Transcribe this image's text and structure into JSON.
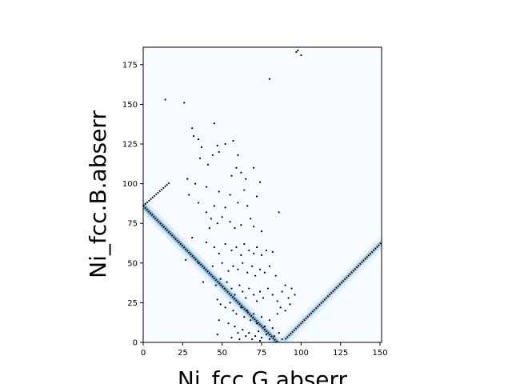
{
  "chart_data": {
    "type": "scatter",
    "title": "",
    "xlabel": "Ni_fcc.G.abserr",
    "ylabel": "Ni_fcc.B.abserr",
    "xlim": [
      0,
      151
    ],
    "ylim": [
      0,
      186
    ],
    "x_ticks": [
      0,
      25,
      50,
      75,
      100,
      125,
      150
    ],
    "y_ticks": [
      0,
      25,
      50,
      75,
      100,
      125,
      150,
      175
    ],
    "x_tick_labels": [
      "0",
      "25",
      "50",
      "75",
      "100",
      "125",
      "150"
    ],
    "y_tick_labels": [
      "0",
      "25",
      "50",
      "75",
      "100",
      "125",
      "150",
      "175"
    ],
    "grid": false,
    "legend": "none",
    "colors": {
      "points": "#000000",
      "density_low": "#f7fbff",
      "density_mid": "#c6dbef",
      "density_high": "#4292c6"
    },
    "trends": [
      {
        "name": "",
        "from": [
          0,
          86
        ],
        "to": [
          85,
          0
        ]
      },
      {
        "name": "",
        "from": [
          0,
          86
        ],
        "to": [
          17,
          101
        ]
      },
      {
        "name": "",
        "from": [
          90,
          2
        ],
        "to": [
          151,
          63
        ]
      }
    ],
    "density_bands": [
      {
        "from": [
          0,
          86
        ],
        "to": [
          85,
          0
        ],
        "intensity": 0.9
      },
      {
        "from": [
          90,
          2
        ],
        "to": [
          151,
          63
        ],
        "intensity": 0.5
      }
    ],
    "points": [
      [
        14,
        153
      ],
      [
        26,
        151
      ],
      [
        45,
        138
      ],
      [
        31,
        135
      ],
      [
        32,
        130
      ],
      [
        35,
        128
      ],
      [
        37,
        123
      ],
      [
        52,
        125
      ],
      [
        47,
        124
      ],
      [
        57,
        127
      ],
      [
        44,
        118
      ],
      [
        48,
        120
      ],
      [
        60,
        118
      ],
      [
        36,
        116
      ],
      [
        41,
        112
      ],
      [
        59,
        110
      ],
      [
        56,
        105
      ],
      [
        62,
        107
      ],
      [
        70,
        110
      ],
      [
        65,
        103
      ],
      [
        80,
        166
      ],
      [
        98,
        184
      ],
      [
        100,
        181
      ],
      [
        97,
        183
      ],
      [
        28,
        103
      ],
      [
        33,
        100
      ],
      [
        40,
        98
      ],
      [
        48,
        95
      ],
      [
        55,
        93
      ],
      [
        64,
        96
      ],
      [
        74,
        101
      ],
      [
        29,
        93
      ],
      [
        35,
        88
      ],
      [
        45,
        86
      ],
      [
        52,
        85
      ],
      [
        60,
        88
      ],
      [
        66,
        86
      ],
      [
        72,
        92
      ],
      [
        40,
        82
      ],
      [
        43,
        78
      ],
      [
        47,
        75
      ],
      [
        50,
        79
      ],
      [
        55,
        76
      ],
      [
        58,
        72
      ],
      [
        62,
        74
      ],
      [
        68,
        78
      ],
      [
        70,
        73
      ],
      [
        75,
        70
      ],
      [
        86,
        82
      ],
      [
        42,
        72
      ],
      [
        31,
        66
      ],
      [
        40,
        63
      ],
      [
        45,
        60
      ],
      [
        48,
        56
      ],
      [
        52,
        62
      ],
      [
        56,
        58
      ],
      [
        59,
        60
      ],
      [
        62,
        55
      ],
      [
        64,
        62
      ],
      [
        67,
        58
      ],
      [
        70,
        56
      ],
      [
        72,
        60
      ],
      [
        75,
        55
      ],
      [
        78,
        58
      ],
      [
        82,
        57
      ],
      [
        27,
        52
      ],
      [
        35,
        50
      ],
      [
        44,
        48
      ],
      [
        50,
        50
      ],
      [
        54,
        45
      ],
      [
        57,
        48
      ],
      [
        60,
        46
      ],
      [
        63,
        50
      ],
      [
        66,
        44
      ],
      [
        69,
        48
      ],
      [
        71,
        42
      ],
      [
        74,
        46
      ],
      [
        77,
        44
      ],
      [
        80,
        48
      ],
      [
        84,
        42
      ],
      [
        38,
        38
      ],
      [
        46,
        36
      ],
      [
        49,
        40
      ],
      [
        53,
        38
      ],
      [
        56,
        34
      ],
      [
        58,
        30
      ],
      [
        61,
        36
      ],
      [
        63,
        32
      ],
      [
        65,
        28
      ],
      [
        67,
        34
      ],
      [
        70,
        30
      ],
      [
        72,
        26
      ],
      [
        74,
        32
      ],
      [
        76,
        28
      ],
      [
        79,
        34
      ],
      [
        82,
        30
      ],
      [
        85,
        26
      ],
      [
        88,
        32
      ],
      [
        90,
        36
      ],
      [
        94,
        34
      ],
      [
        96,
        30
      ],
      [
        92,
        28
      ],
      [
        47,
        27
      ],
      [
        49,
        24
      ],
      [
        52,
        22
      ],
      [
        55,
        25
      ],
      [
        57,
        20
      ],
      [
        59,
        18
      ],
      [
        62,
        22
      ],
      [
        64,
        16
      ],
      [
        66,
        20
      ],
      [
        68,
        14
      ],
      [
        70,
        18
      ],
      [
        72,
        12
      ],
      [
        75,
        16
      ],
      [
        77,
        10
      ],
      [
        80,
        14
      ],
      [
        82,
        9
      ],
      [
        85,
        18
      ],
      [
        87,
        22
      ],
      [
        90,
        20
      ],
      [
        93,
        24
      ],
      [
        48,
        14
      ],
      [
        54,
        12
      ],
      [
        58,
        10
      ],
      [
        60,
        6
      ],
      [
        63,
        8
      ],
      [
        65,
        4
      ],
      [
        67,
        6
      ],
      [
        69,
        2
      ],
      [
        71,
        4
      ],
      [
        73,
        7
      ],
      [
        75,
        3
      ],
      [
        78,
        5
      ],
      [
        80,
        2
      ],
      [
        83,
        4
      ],
      [
        86,
        6
      ],
      [
        88,
        2
      ],
      [
        47,
        5
      ],
      [
        56,
        3
      ],
      [
        61,
        2
      ],
      [
        74,
        1
      ]
    ]
  }
}
